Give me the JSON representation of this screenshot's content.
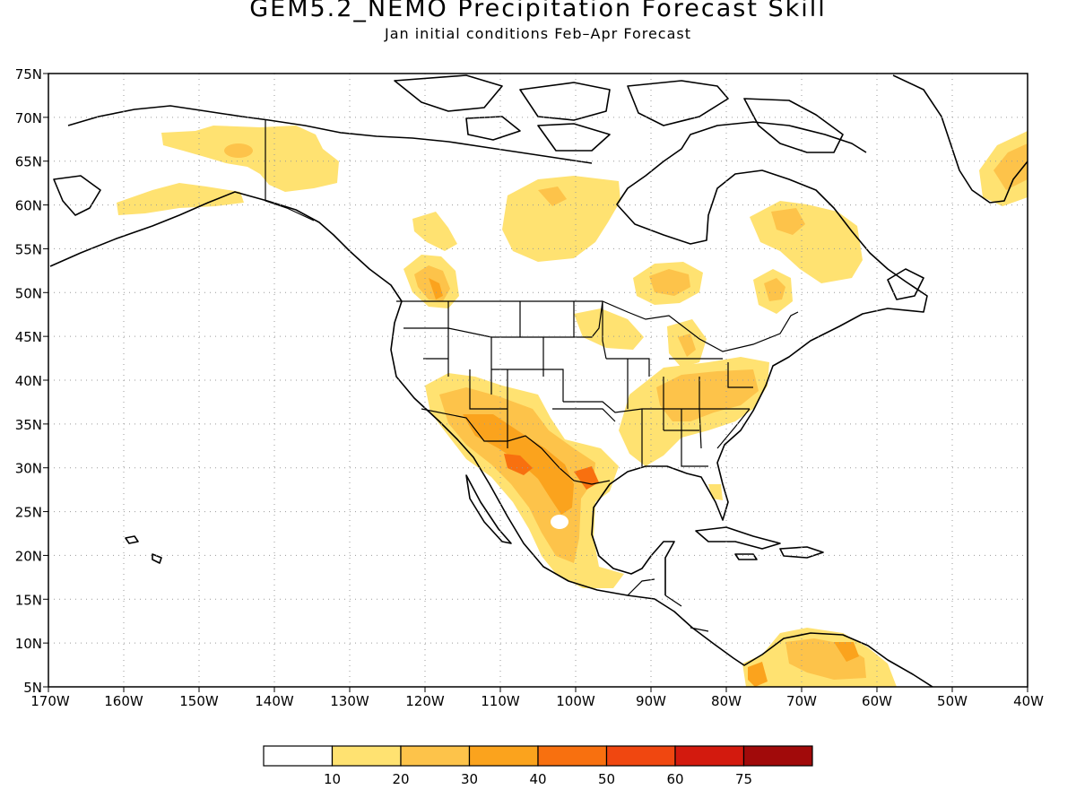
{
  "header": {
    "title": "GEM5.2_NEMO Precipitation Forecast Skill",
    "subtitle": "Jan initial conditions  Feb–Apr Forecast"
  },
  "map": {
    "lat_labels": [
      "75N",
      "70N",
      "65N",
      "60N",
      "55N",
      "50N",
      "45N",
      "40N",
      "35N",
      "30N",
      "25N",
      "20N",
      "15N",
      "10N",
      "5N"
    ],
    "lon_labels": [
      "170W",
      "160W",
      "150W",
      "140W",
      "130W",
      "120W",
      "110W",
      "100W",
      "90W",
      "80W",
      "70W",
      "60W",
      "50W",
      "40W"
    ],
    "lat_range": [
      5,
      75
    ],
    "lon_range": [
      -170,
      -40
    ],
    "grid": "dotted"
  },
  "legend": {
    "tick_labels": [
      "10",
      "20",
      "30",
      "40",
      "50",
      "60",
      "75"
    ],
    "colors": [
      "#ffffff",
      "#ffe271",
      "#fdc34a",
      "#fba31d",
      "#f8700f",
      "#f04710",
      "#d31a0e",
      "#a10a0a"
    ]
  }
}
